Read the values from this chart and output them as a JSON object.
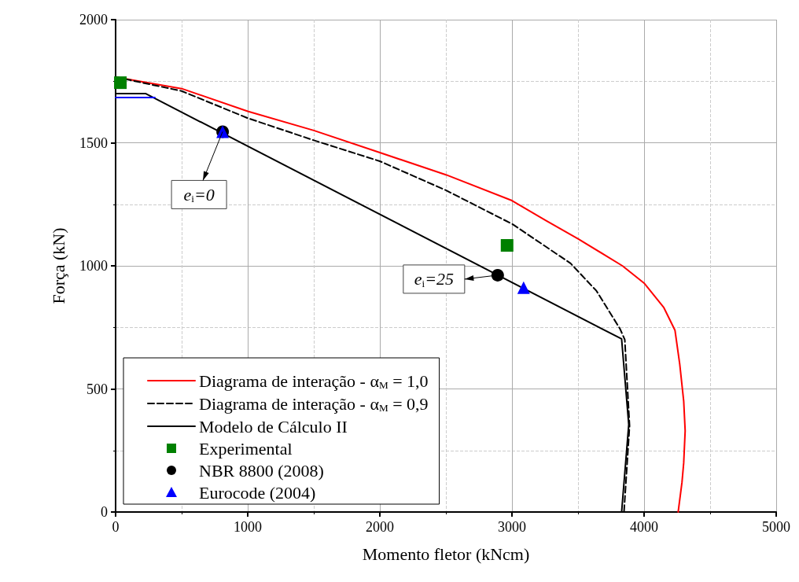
{
  "chart_data": {
    "type": "line",
    "xlabel": "Momento fletor (kNcm)",
    "ylabel": "Força (kN)",
    "xlim": [
      0,
      5000
    ],
    "xticks": [
      0,
      1000,
      2000,
      3000,
      4000,
      5000
    ],
    "ylim": [
      0,
      2000
    ],
    "yticks": [
      0,
      500,
      1000,
      1500,
      2000
    ],
    "grid": true,
    "legend": "bottom left",
    "series": [
      {
        "name": "Diagrama de interação - α$_{M}$ = 1,0",
        "color": "#ff0000",
        "line_style": "solid",
        "marker": "none",
        "x": [
          0,
          500,
          1000,
          1500,
          2000,
          2500,
          3000,
          3254,
          3500,
          3836,
          4000,
          4150,
          4234,
          4270,
          4300,
          4311,
          4300,
          4287,
          4258
        ],
        "values": [
          1767,
          1720,
          1628,
          1550,
          1460,
          1370,
          1265,
          1185,
          1110,
          1000,
          930,
          830,
          738,
          600,
          450,
          330,
          200,
          121,
          0
        ]
      },
      {
        "name": "Diagrama de interação - α$_{M}$ = 0,9",
        "color": "#000000",
        "line_style": "dashed",
        "marker": "none",
        "x": [
          0,
          500,
          1000,
          1500,
          2000,
          2500,
          3005,
          3444,
          3640,
          3818,
          3854,
          3890,
          3848
        ],
        "values": [
          1767,
          1710,
          1600,
          1510,
          1425,
          1307,
          1169,
          1010,
          898,
          744,
          700,
          350,
          0
        ]
      },
      {
        "name": "Modelo de Cálculo II",
        "color": "#000000",
        "line_style": "solid",
        "marker": "none",
        "x": [
          0,
          226,
          3830,
          3884,
          3830
        ],
        "values": [
          1700,
          1700,
          703,
          355,
          0
        ]
      },
      {
        "color": "#0000ff",
        "line_style": "solid",
        "marker": "none",
        "x": [
          0,
          297
        ],
        "values": [
          1684,
          1684
        ]
      },
      {
        "name": "Experimental",
        "type": "scatter",
        "color": "#008000",
        "marker": "square",
        "x": [
          36,
          2963
        ],
        "values": [
          1744,
          1083
        ]
      },
      {
        "name": "NBR 8800 (2008)",
        "type": "scatter",
        "color": "#000000",
        "marker": "circle",
        "x": [
          810,
          2892
        ],
        "values": [
          1545,
          962
        ]
      },
      {
        "name": "Eurocode (2004)",
        "type": "scatter",
        "color": "#0000ff",
        "marker": "triangle",
        "x": [
          810,
          3088
        ],
        "values": [
          1545,
          911
        ]
      }
    ],
    "annotations": [
      {
        "text": "e$_{i}$=0",
        "x": 810,
        "y": 1545
      },
      {
        "text": "e$_{i}$=25",
        "x": 2892,
        "y": 962
      }
    ]
  }
}
